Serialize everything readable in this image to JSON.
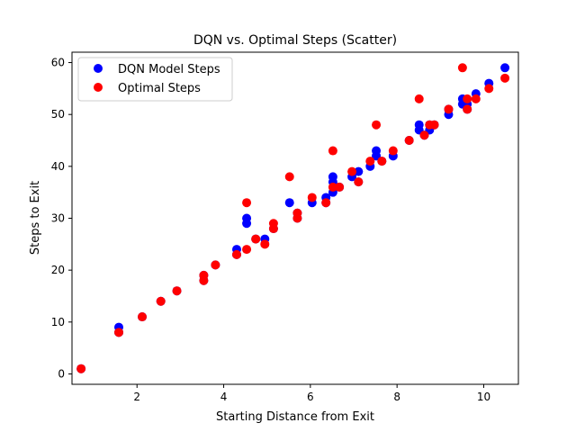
{
  "chart_data": {
    "type": "scatter",
    "title": "DQN vs. Optimal Steps (Scatter)",
    "xlabel": "Starting Distance from Exit",
    "ylabel": "Steps to Exit",
    "xlim": [
      0.5,
      10.8
    ],
    "ylim": [
      -2,
      62
    ],
    "xticks": [
      2,
      4,
      6,
      8,
      10
    ],
    "yticks": [
      0,
      10,
      20,
      30,
      40,
      50,
      60
    ],
    "grid": false,
    "legend_position": "top-left",
    "series": [
      {
        "name": "DQN Model Steps",
        "color": "#0000ff",
        "points": [
          [
            0.71,
            1
          ],
          [
            1.58,
            9
          ],
          [
            1.58,
            8
          ],
          [
            2.12,
            11
          ],
          [
            2.55,
            14
          ],
          [
            2.92,
            16
          ],
          [
            3.54,
            19
          ],
          [
            3.54,
            18
          ],
          [
            3.81,
            21
          ],
          [
            4.3,
            24
          ],
          [
            4.3,
            23
          ],
          [
            4.53,
            30
          ],
          [
            4.53,
            29
          ],
          [
            4.74,
            26
          ],
          [
            4.95,
            26
          ],
          [
            5.15,
            28
          ],
          [
            5.52,
            33
          ],
          [
            5.7,
            31
          ],
          [
            5.7,
            30
          ],
          [
            6.04,
            33
          ],
          [
            6.36,
            34
          ],
          [
            6.36,
            33
          ],
          [
            6.52,
            38
          ],
          [
            6.52,
            37
          ],
          [
            6.52,
            35
          ],
          [
            6.67,
            36
          ],
          [
            6.96,
            38
          ],
          [
            7.11,
            39
          ],
          [
            7.11,
            37
          ],
          [
            7.38,
            40
          ],
          [
            7.52,
            43
          ],
          [
            7.52,
            42
          ],
          [
            7.65,
            41
          ],
          [
            7.91,
            42
          ],
          [
            8.28,
            45
          ],
          [
            8.51,
            48
          ],
          [
            8.51,
            47
          ],
          [
            8.63,
            46
          ],
          [
            8.75,
            47
          ],
          [
            8.75,
            48
          ],
          [
            8.86,
            48
          ],
          [
            9.19,
            50
          ],
          [
            9.19,
            51
          ],
          [
            9.51,
            53
          ],
          [
            9.51,
            52
          ],
          [
            9.62,
            51
          ],
          [
            9.62,
            52
          ],
          [
            9.82,
            54
          ],
          [
            10.12,
            56
          ],
          [
            10.49,
            59
          ]
        ]
      },
      {
        "name": "Optimal Steps",
        "color": "#ff0000",
        "points": [
          [
            0.71,
            1
          ],
          [
            1.58,
            8
          ],
          [
            2.12,
            11
          ],
          [
            2.55,
            14
          ],
          [
            2.92,
            16
          ],
          [
            3.54,
            19
          ],
          [
            3.54,
            18
          ],
          [
            3.81,
            21
          ],
          [
            4.3,
            23
          ],
          [
            4.53,
            33
          ],
          [
            4.53,
            24
          ],
          [
            4.74,
            26
          ],
          [
            4.95,
            25
          ],
          [
            5.15,
            29
          ],
          [
            5.15,
            28
          ],
          [
            5.52,
            38
          ],
          [
            5.7,
            31
          ],
          [
            5.7,
            30
          ],
          [
            6.04,
            34
          ],
          [
            6.36,
            33
          ],
          [
            6.52,
            43
          ],
          [
            6.52,
            36
          ],
          [
            6.67,
            36
          ],
          [
            6.96,
            39
          ],
          [
            7.11,
            37
          ],
          [
            7.38,
            41
          ],
          [
            7.52,
            48
          ],
          [
            7.65,
            41
          ],
          [
            7.91,
            43
          ],
          [
            8.28,
            45
          ],
          [
            8.51,
            53
          ],
          [
            8.63,
            46
          ],
          [
            8.75,
            48
          ],
          [
            8.86,
            48
          ],
          [
            9.19,
            51
          ],
          [
            9.51,
            59
          ],
          [
            9.62,
            53
          ],
          [
            9.62,
            51
          ],
          [
            9.82,
            53
          ],
          [
            10.12,
            55
          ],
          [
            10.49,
            57
          ]
        ]
      }
    ]
  }
}
